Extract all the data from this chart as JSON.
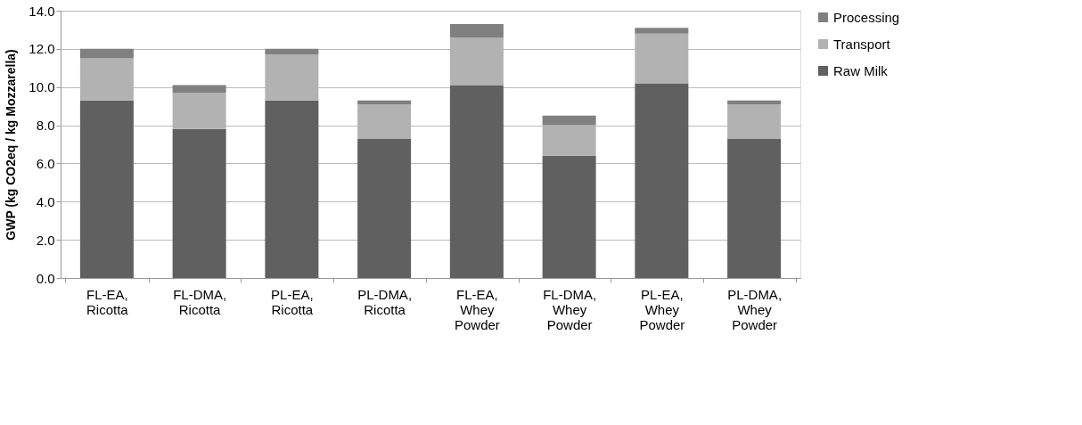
{
  "chart_data": {
    "type": "bar",
    "stacked": true,
    "ylabel": "GWP (kg CO2eq / kg Mozzarella)",
    "categories": [
      "FL-EA, Ricotta",
      "FL-DMA, Ricotta",
      "PL-EA, Ricotta",
      "PL-DMA, Ricotta",
      "FL-EA, Whey Powder",
      "FL-DMA, Whey Powder",
      "PL-EA, Whey Powder",
      "PL-DMA, Whey Powder"
    ],
    "series": [
      {
        "name": "Raw Milk",
        "color": "#606060",
        "values": [
          9.3,
          7.8,
          9.3,
          7.3,
          10.1,
          6.4,
          10.2,
          7.3
        ]
      },
      {
        "name": "Transport",
        "color": "#b2b2b2",
        "values": [
          2.2,
          1.9,
          2.4,
          1.8,
          2.5,
          1.6,
          2.6,
          1.8
        ]
      },
      {
        "name": "Processing",
        "color": "#808080",
        "values": [
          0.5,
          0.4,
          0.3,
          0.2,
          0.7,
          0.5,
          0.3,
          0.2
        ]
      }
    ],
    "ylim": [
      0,
      14
    ],
    "yticks": [
      {
        "value": 0,
        "label": "0.0"
      },
      {
        "value": 2,
        "label": "2.0"
      },
      {
        "value": 4,
        "label": "4.0"
      },
      {
        "value": 6,
        "label": "6.0"
      },
      {
        "value": 8,
        "label": "8.0"
      },
      {
        "value": 10,
        "label": "10.0"
      },
      {
        "value": 12,
        "label": "12.0"
      },
      {
        "value": 14,
        "label": "14.0"
      }
    ],
    "grid": "y",
    "legend": "right"
  }
}
